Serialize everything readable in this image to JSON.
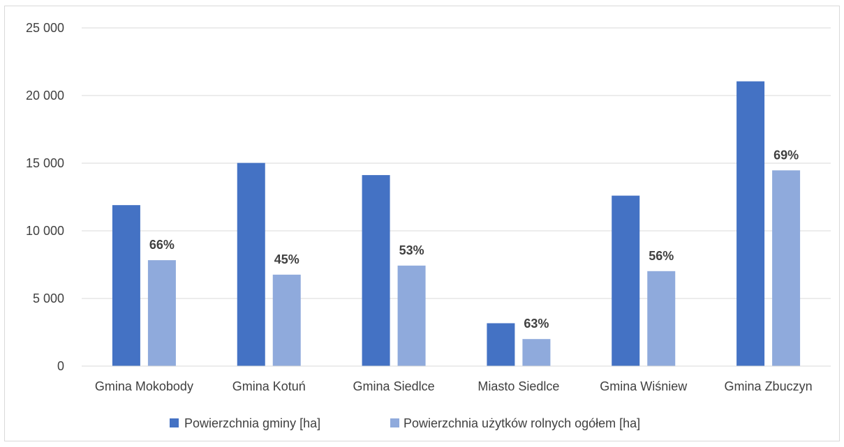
{
  "chart_data": {
    "type": "bar",
    "categories": [
      "Gmina Mokobody",
      "Gmina Kotuń",
      "Gmina Siedlce",
      "Miasto Siedlce",
      "Gmina Wiśniew",
      "Gmina Zbuczyn"
    ],
    "series": [
      {
        "name": "Powierzchnia gminy [ha]",
        "color": "#4472c4",
        "values": [
          11900,
          15020,
          14120,
          3170,
          12600,
          21050
        ]
      },
      {
        "name": "Powierzchnia użytków rolnych ogółem [ha]",
        "color": "#8faadc",
        "values": [
          7830,
          6760,
          7430,
          2000,
          7020,
          14470
        ]
      }
    ],
    "data_labels": [
      "66%",
      "45%",
      "53%",
      "63%",
      "56%",
      "69%"
    ],
    "ylim": [
      0,
      25000
    ],
    "yticks": [
      0,
      5000,
      10000,
      15000,
      20000,
      25000
    ],
    "ytick_labels": [
      "0",
      "5 000",
      "10 000",
      "15 000",
      "20 000",
      "25 000"
    ],
    "grid": true,
    "legend_position": "bottom",
    "title": "",
    "xlabel": "",
    "ylabel": ""
  }
}
